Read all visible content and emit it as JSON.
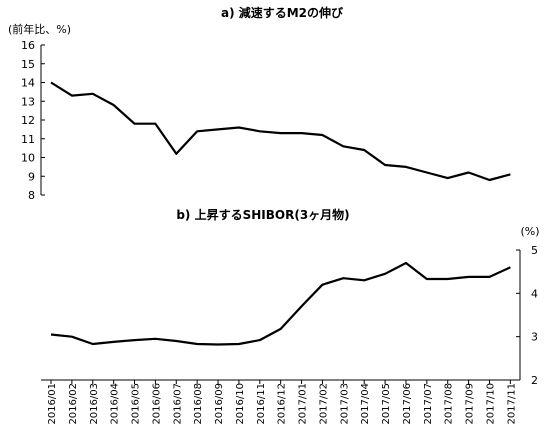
{
  "chart_data": [
    {
      "type": "line",
      "title": "a) 減速するM2の伸び",
      "unit_label": "(前年比、%)",
      "ylim": [
        8,
        16
      ],
      "yticks": [
        8,
        9,
        10,
        11,
        12,
        13,
        14,
        15,
        16
      ],
      "y_axis_side": "left",
      "grid": false,
      "categories": [
        "2016/01",
        "2016/02",
        "2016/03",
        "2016/04",
        "2016/05",
        "2016/06",
        "2016/07",
        "2016/08",
        "2016/09",
        "2016/10",
        "2016/11",
        "2016/12",
        "2017/01",
        "2017/02",
        "2017/03",
        "2017/04",
        "2017/05",
        "2017/06",
        "2017/07",
        "2017/08",
        "2017/09",
        "2017/10",
        "2017/11"
      ],
      "series": [
        {
          "values": [
            14.0,
            13.3,
            13.4,
            12.8,
            11.8,
            11.8,
            10.2,
            11.4,
            11.5,
            11.6,
            11.4,
            11.3,
            11.3,
            11.2,
            10.6,
            10.4,
            9.6,
            9.5,
            9.2,
            8.9,
            9.2,
            8.8,
            9.1
          ]
        }
      ]
    },
    {
      "type": "line",
      "title": "b) 上昇するSHIBOR(3ヶ月物)",
      "unit_label": "(%)",
      "ylim": [
        2,
        5
      ],
      "yticks": [
        2,
        3,
        4,
        5
      ],
      "y_axis_side": "right",
      "grid": false,
      "categories": [
        "2016/01",
        "2016/02",
        "2016/03",
        "2016/04",
        "2016/05",
        "2016/06",
        "2016/07",
        "2016/08",
        "2016/09",
        "2016/10",
        "2016/11",
        "2016/12",
        "2017/01",
        "2017/02",
        "2017/03",
        "2017/04",
        "2017/05",
        "2017/06",
        "2017/07",
        "2017/08",
        "2017/09",
        "2017/10",
        "2017/11"
      ],
      "series": [
        {
          "values": [
            3.05,
            3.0,
            2.83,
            2.88,
            2.92,
            2.95,
            2.9,
            2.83,
            2.82,
            2.83,
            2.92,
            3.18,
            3.7,
            4.2,
            4.35,
            4.3,
            4.45,
            4.7,
            4.33,
            4.33,
            4.38,
            4.38,
            4.6
          ]
        }
      ]
    }
  ]
}
